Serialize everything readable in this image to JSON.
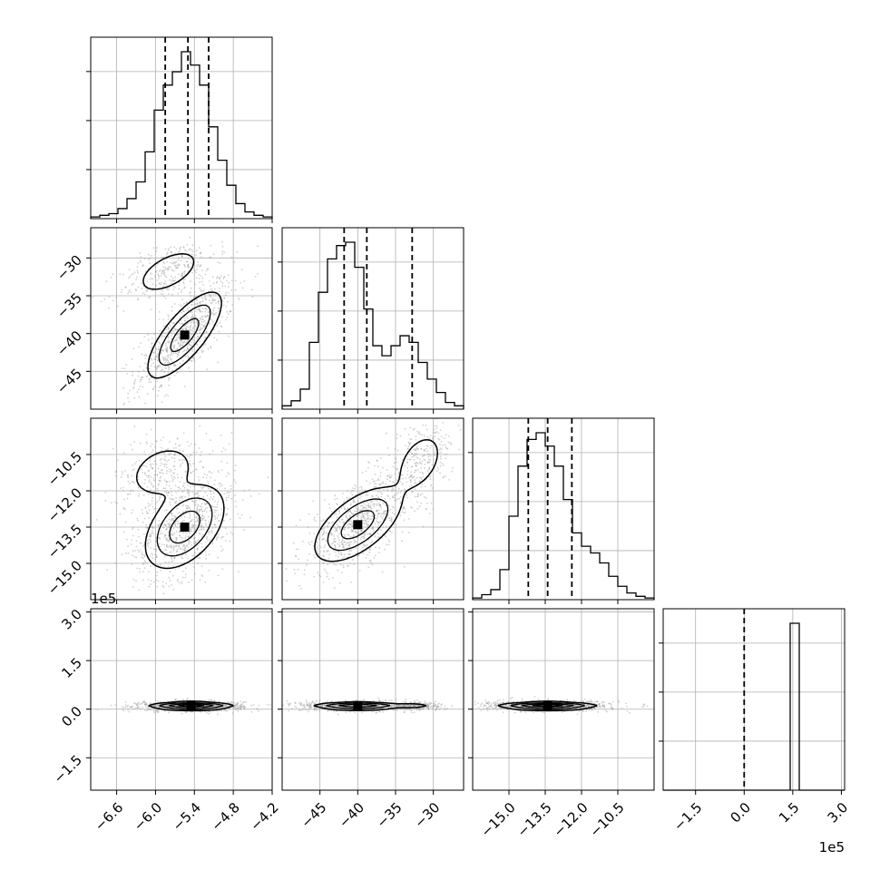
{
  "chart_data": {
    "type": "corner",
    "grid": true,
    "colors": {
      "line": "#000000",
      "grid": "#b0b0b0",
      "points": "#9a9a9a",
      "fill": "#555555"
    },
    "parameters": [
      {
        "range": [
          -7.0,
          -4.2
        ],
        "ticks": [
          -6.6,
          -6.0,
          -5.4,
          -4.8,
          -4.2
        ],
        "tick_labels": [
          "−6.6",
          "−6.0",
          "−5.4",
          "−4.8",
          "−4.2"
        ],
        "offset_text": "",
        "quantiles": [
          -5.85,
          -5.5,
          -5.18
        ]
      },
      {
        "range": [
          -50,
          -26
        ],
        "ticks": [
          -45,
          -40,
          -35,
          -30
        ],
        "tick_labels": [
          "−45",
          "−40",
          "−35",
          "−30"
        ],
        "offset_text": "",
        "quantiles": [
          -41.8,
          -38.8,
          -32.8
        ]
      },
      {
        "range": [
          -16.5,
          -9.0
        ],
        "ticks": [
          -15.0,
          -13.5,
          -12.0,
          -10.5
        ],
        "tick_labels": [
          "−15.0",
          "−13.5",
          "−12.0",
          "−10.5"
        ],
        "offset_text": "",
        "quantiles": [
          -14.2,
          -13.4,
          -12.4
        ]
      },
      {
        "range": [
          -2.5,
          3.1
        ],
        "ticks": [
          -1.5,
          0.0,
          1.5,
          3.0
        ],
        "tick_labels": [
          "−1.5",
          "0.0",
          "1.5",
          "3.0"
        ],
        "offset_text": "1e5",
        "quantiles": [
          0.0
        ]
      }
    ],
    "histograms": [
      [
        1,
        2,
        3,
        6,
        12,
        22,
        40,
        65,
        80,
        88,
        100,
        92,
        80,
        55,
        35,
        20,
        9,
        4,
        2,
        1
      ],
      [
        2,
        5,
        12,
        40,
        70,
        90,
        98,
        100,
        85,
        60,
        38,
        32,
        38,
        44,
        40,
        28,
        18,
        10,
        4,
        2
      ],
      [
        1,
        3,
        6,
        18,
        50,
        80,
        96,
        100,
        92,
        80,
        60,
        40,
        32,
        28,
        22,
        14,
        8,
        4,
        2,
        1
      ],
      [
        0,
        0,
        0,
        0,
        0,
        0,
        0,
        0,
        0,
        0,
        0,
        0,
        0,
        0,
        100,
        0,
        0,
        0,
        0,
        0
      ]
    ]
  }
}
